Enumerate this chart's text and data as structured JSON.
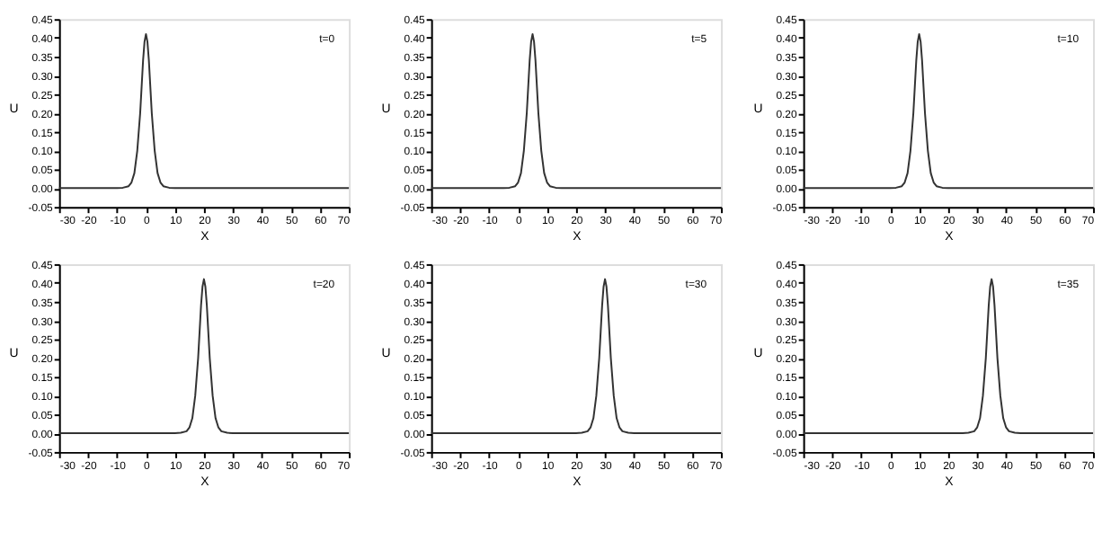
{
  "chart_data": [
    {
      "type": "line",
      "xlabel": "X",
      "ylabel": "U",
      "annotations": [
        "t=0"
      ],
      "x": [
        -30,
        -10,
        -8,
        -6,
        -5,
        -4,
        -3,
        -2,
        -1.5,
        -1,
        -0.5,
        0,
        0.5,
        1,
        1.5,
        2,
        3,
        4,
        5,
        6,
        8,
        10,
        70
      ],
      "series": [
        {
          "color": "#333333",
          "values": [
            0,
            0,
            0.001,
            0.005,
            0.015,
            0.04,
            0.1,
            0.2,
            0.27,
            0.34,
            0.39,
            0.41,
            0.39,
            0.34,
            0.27,
            0.2,
            0.1,
            0.04,
            0.015,
            0.005,
            0.001,
            0,
            0
          ]
        }
      ],
      "xlim": [
        -30,
        70
      ],
      "xticks": [
        -30,
        -20,
        -10,
        0,
        10,
        20,
        30,
        40,
        50,
        60,
        70
      ],
      "ylim": [
        -0.05,
        0.45
      ],
      "yticks": [
        {
          "value": -0.05,
          "label": "-0.05"
        },
        {
          "value": 0,
          "label": "0.00"
        },
        {
          "value": 0.05,
          "label": "0.05"
        },
        {
          "value": 0.1,
          "label": "0.10"
        },
        {
          "value": 0.15,
          "label": "0.15"
        },
        {
          "value": 0.2,
          "label": "0.20"
        },
        {
          "value": 0.25,
          "label": "0.25"
        },
        {
          "value": 0.3,
          "label": "0.30"
        },
        {
          "value": 0.35,
          "label": "0.35"
        },
        {
          "value": 0.4,
          "label": "0.40"
        },
        {
          "value": 0.45,
          "label": "0.45"
        }
      ]
    },
    {
      "type": "line",
      "xlabel": "X",
      "ylabel": "U",
      "annotations": [
        "t=5"
      ],
      "x": [
        -30,
        -5,
        -3,
        -1,
        0,
        1,
        2,
        3,
        3.5,
        4,
        4.5,
        5,
        5.5,
        6,
        6.5,
        7,
        8,
        9,
        10,
        11,
        13,
        15,
        70
      ],
      "series": [
        {
          "color": "#333333",
          "values": [
            0,
            0,
            0.001,
            0.005,
            0.015,
            0.04,
            0.1,
            0.2,
            0.27,
            0.34,
            0.39,
            0.41,
            0.39,
            0.34,
            0.27,
            0.2,
            0.1,
            0.04,
            0.015,
            0.005,
            0.001,
            0,
            0
          ]
        }
      ],
      "xlim": [
        -30,
        70
      ],
      "xticks": [
        -30,
        -20,
        -10,
        0,
        10,
        20,
        30,
        40,
        50,
        60,
        70
      ],
      "ylim": [
        -0.05,
        0.45
      ],
      "yticks": [
        {
          "value": -0.05,
          "label": "-0.05"
        },
        {
          "value": 0,
          "label": "0.00"
        },
        {
          "value": 0.05,
          "label": "0.05"
        },
        {
          "value": 0.1,
          "label": "0.10"
        },
        {
          "value": 0.15,
          "label": "0.15"
        },
        {
          "value": 0.2,
          "label": "0.20"
        },
        {
          "value": 0.25,
          "label": "0.25"
        },
        {
          "value": 0.3,
          "label": "0.30"
        },
        {
          "value": 0.35,
          "label": "0.35"
        },
        {
          "value": 0.4,
          "label": "0.40"
        },
        {
          "value": 0.45,
          "label": "0.45"
        }
      ]
    },
    {
      "type": "line",
      "xlabel": "X",
      "ylabel": "U",
      "annotations": [
        "t=10"
      ],
      "x": [
        -30,
        0,
        2,
        4,
        5,
        6,
        7,
        8,
        8.5,
        9,
        9.5,
        10,
        10.5,
        11,
        11.5,
        12,
        13,
        14,
        15,
        16,
        18,
        20,
        70
      ],
      "series": [
        {
          "color": "#333333",
          "values": [
            0,
            0,
            0.001,
            0.005,
            0.015,
            0.04,
            0.1,
            0.2,
            0.27,
            0.34,
            0.39,
            0.41,
            0.39,
            0.34,
            0.27,
            0.2,
            0.1,
            0.04,
            0.015,
            0.005,
            0.001,
            0,
            0
          ]
        }
      ],
      "xlim": [
        -30,
        70
      ],
      "xticks": [
        -30,
        -20,
        -10,
        0,
        10,
        20,
        30,
        40,
        50,
        60,
        70
      ],
      "ylim": [
        -0.05,
        0.45
      ],
      "yticks": [
        {
          "value": -0.05,
          "label": "-0.05"
        },
        {
          "value": 0,
          "label": "0.00"
        },
        {
          "value": 0.05,
          "label": "0.05"
        },
        {
          "value": 0.1,
          "label": "0.10"
        },
        {
          "value": 0.15,
          "label": "0.15"
        },
        {
          "value": 0.2,
          "label": "0.20"
        },
        {
          "value": 0.25,
          "label": "0.25"
        },
        {
          "value": 0.3,
          "label": "0.30"
        },
        {
          "value": 0.35,
          "label": "0.35"
        },
        {
          "value": 0.4,
          "label": "0.40"
        },
        {
          "value": 0.45,
          "label": "0.45"
        }
      ]
    },
    {
      "type": "line",
      "xlabel": "X",
      "ylabel": "U",
      "annotations": [
        "t=20"
      ],
      "x": [
        -30,
        10,
        12,
        14,
        15,
        16,
        17,
        18,
        18.5,
        19,
        19.5,
        20,
        20.5,
        21,
        21.5,
        22,
        23,
        24,
        25,
        26,
        28,
        30,
        70
      ],
      "series": [
        {
          "color": "#333333",
          "values": [
            0,
            0,
            0.001,
            0.005,
            0.015,
            0.04,
            0.1,
            0.2,
            0.27,
            0.34,
            0.39,
            0.41,
            0.39,
            0.34,
            0.27,
            0.2,
            0.1,
            0.04,
            0.015,
            0.005,
            0.001,
            0,
            0
          ]
        }
      ],
      "xlim": [
        -30,
        70
      ],
      "xticks": [
        -30,
        -20,
        -10,
        0,
        10,
        20,
        30,
        40,
        50,
        60,
        70
      ],
      "ylim": [
        -0.05,
        0.45
      ],
      "yticks": [
        {
          "value": -0.05,
          "label": "-0.05"
        },
        {
          "value": 0,
          "label": "0.00"
        },
        {
          "value": 0.05,
          "label": "0.05"
        },
        {
          "value": 0.1,
          "label": "0.10"
        },
        {
          "value": 0.15,
          "label": "0.15"
        },
        {
          "value": 0.2,
          "label": "0.20"
        },
        {
          "value": 0.25,
          "label": "0.25"
        },
        {
          "value": 0.3,
          "label": "0.30"
        },
        {
          "value": 0.35,
          "label": "0.35"
        },
        {
          "value": 0.4,
          "label": "0.40"
        },
        {
          "value": 0.45,
          "label": "0.45"
        }
      ]
    },
    {
      "type": "line",
      "xlabel": "X",
      "ylabel": "U",
      "annotations": [
        "t=30"
      ],
      "x": [
        -30,
        20,
        22,
        24,
        25,
        26,
        27,
        28,
        28.5,
        29,
        29.5,
        30,
        30.5,
        31,
        31.5,
        32,
        33,
        34,
        35,
        36,
        38,
        40,
        70
      ],
      "series": [
        {
          "color": "#333333",
          "values": [
            0,
            0,
            0.001,
            0.005,
            0.015,
            0.04,
            0.1,
            0.2,
            0.27,
            0.34,
            0.39,
            0.41,
            0.39,
            0.34,
            0.27,
            0.2,
            0.1,
            0.04,
            0.015,
            0.005,
            0.001,
            0,
            0
          ]
        }
      ],
      "xlim": [
        -30,
        70
      ],
      "xticks": [
        -30,
        -20,
        -10,
        0,
        10,
        20,
        30,
        40,
        50,
        60,
        70
      ],
      "ylim": [
        -0.05,
        0.45
      ],
      "yticks": [
        {
          "value": -0.05,
          "label": "-0.05"
        },
        {
          "value": 0,
          "label": "0.00"
        },
        {
          "value": 0.05,
          "label": "0.05"
        },
        {
          "value": 0.1,
          "label": "0.10"
        },
        {
          "value": 0.15,
          "label": "0.15"
        },
        {
          "value": 0.2,
          "label": "0.20"
        },
        {
          "value": 0.25,
          "label": "0.25"
        },
        {
          "value": 0.3,
          "label": "0.30"
        },
        {
          "value": 0.35,
          "label": "0.35"
        },
        {
          "value": 0.4,
          "label": "0.40"
        },
        {
          "value": 0.45,
          "label": "0.45"
        }
      ]
    },
    {
      "type": "line",
      "xlabel": "X",
      "ylabel": "U",
      "annotations": [
        "t=35"
      ],
      "x": [
        -30,
        25,
        27,
        29,
        30,
        31,
        32,
        33,
        33.5,
        34,
        34.5,
        35,
        35.5,
        36,
        36.5,
        37,
        38,
        39,
        40,
        41,
        43,
        45,
        70
      ],
      "series": [
        {
          "color": "#333333",
          "values": [
            0,
            0,
            0.001,
            0.005,
            0.015,
            0.04,
            0.1,
            0.2,
            0.27,
            0.34,
            0.39,
            0.41,
            0.39,
            0.34,
            0.27,
            0.2,
            0.1,
            0.04,
            0.015,
            0.005,
            0.001,
            0,
            0
          ]
        }
      ],
      "xlim": [
        -30,
        70
      ],
      "xticks": [
        -30,
        -20,
        -10,
        0,
        10,
        20,
        30,
        40,
        50,
        60,
        70
      ],
      "ylim": [
        -0.05,
        0.45
      ],
      "yticks": [
        {
          "value": -0.05,
          "label": "-0.05"
        },
        {
          "value": 0,
          "label": "0.00"
        },
        {
          "value": 0.05,
          "label": "0.05"
        },
        {
          "value": 0.1,
          "label": "0.10"
        },
        {
          "value": 0.15,
          "label": "0.15"
        },
        {
          "value": 0.2,
          "label": "0.20"
        },
        {
          "value": 0.25,
          "label": "0.25"
        },
        {
          "value": 0.3,
          "label": "0.30"
        },
        {
          "value": 0.35,
          "label": "0.35"
        },
        {
          "value": 0.4,
          "label": "0.40"
        },
        {
          "value": 0.45,
          "label": "0.45"
        }
      ]
    }
  ]
}
